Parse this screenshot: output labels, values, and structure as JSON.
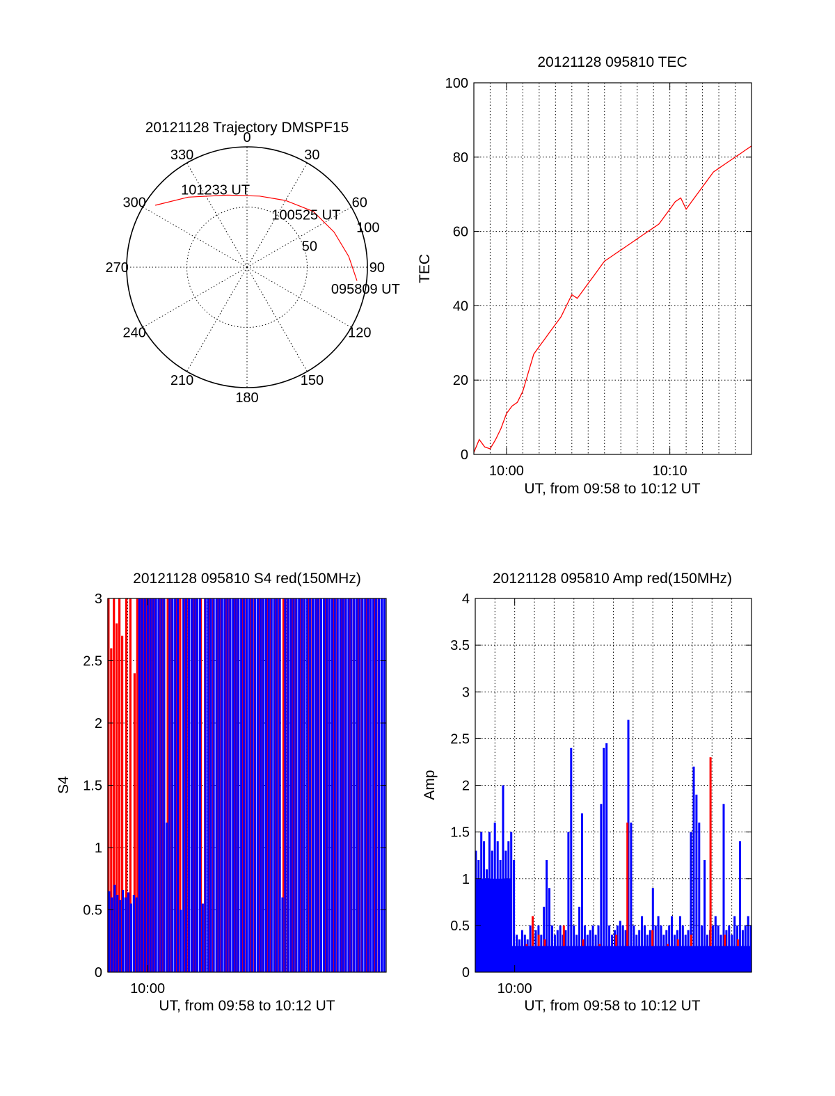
{
  "chart_data": [
    {
      "type": "polar-trajectory",
      "title": "20121128 Trajectory DMSPF15",
      "azimuth_ticks": [
        "0",
        "30",
        "60",
        "90",
        "120",
        "150",
        "180",
        "210",
        "240",
        "270",
        "300",
        "330"
      ],
      "radial_ticks": [
        "50",
        "100"
      ],
      "series": [
        {
          "color": "#ff0000",
          "points_az_zen": [
            [
              304,
              92
            ],
            [
              320,
              76
            ],
            [
              345,
              62
            ],
            [
              10,
              60
            ],
            [
              30,
              64
            ],
            [
              50,
              72
            ],
            [
              68,
              78
            ],
            [
              84,
              85
            ],
            [
              97,
              92
            ]
          ]
        }
      ],
      "annotations": [
        {
          "text": "101233 UT",
          "az": 338,
          "zen": 70
        },
        {
          "text": "100525 UT",
          "az": 48,
          "zen": 66
        },
        {
          "text": "095809 UT",
          "az": 100,
          "zen": 100
        }
      ]
    },
    {
      "type": "line",
      "title": "20121128 095810 TEC",
      "xlabel": "UT, from 09:58 to 10:12 UT",
      "ylabel": "TEC",
      "x_tick_labels": [
        "10:00",
        "10:10"
      ],
      "yticks": [
        "0",
        "20",
        "40",
        "60",
        "80",
        "100"
      ],
      "xlim": [
        9.9667,
        10.25
      ],
      "ylim": [
        0,
        100
      ],
      "series": [
        {
          "color": "#ff0000",
          "x": [
            9.9667,
            9.9722,
            9.9778,
            9.9833,
            9.9889,
            9.9944,
            10.0,
            10.0056,
            10.0111,
            10.0167,
            10.0222,
            10.0278,
            10.0333,
            10.0389,
            10.0444,
            10.05,
            10.0556,
            10.0611,
            10.0667,
            10.0722,
            10.0778,
            10.0833,
            10.0889,
            10.0944,
            10.1,
            10.1056,
            10.1111,
            10.1167,
            10.1222,
            10.1278,
            10.1333,
            10.1389,
            10.1444,
            10.15,
            10.1556,
            10.1611,
            10.1667,
            10.1722,
            10.1778,
            10.1833,
            10.1889,
            10.1944,
            10.2,
            10.2056,
            10.2111,
            10.2167,
            10.2222,
            10.2278,
            10.2333,
            10.2389,
            10.2444,
            10.25
          ],
          "y": [
            0.5,
            4,
            2,
            1.5,
            4,
            7,
            11,
            13,
            14,
            17,
            22,
            27,
            29,
            31,
            33,
            35,
            37,
            40,
            43,
            42,
            44,
            46,
            48,
            50,
            52,
            53,
            54,
            55,
            56,
            57,
            58,
            59,
            60,
            61,
            62,
            64,
            66,
            68,
            69,
            66,
            68,
            70,
            72,
            74,
            76,
            77,
            78,
            79,
            80,
            81,
            82,
            83
          ]
        }
      ]
    },
    {
      "type": "bar",
      "title": "20121128 095810 S4 red(150MHz)",
      "xlabel": "UT, from 09:58 to 10:12 UT",
      "ylabel": "S4",
      "x_tick_labels": [
        "10:00"
      ],
      "yticks": [
        "0",
        "0.5",
        "1",
        "1.5",
        "2",
        "2.5",
        "3"
      ],
      "xlim": [
        9.9667,
        10.2
      ],
      "ylim": [
        0,
        3
      ],
      "series": [
        {
          "color": "#ff0000",
          "x": [
            9.9672,
            9.9695,
            9.9718,
            9.9741,
            9.9764,
            9.9787,
            9.9822,
            9.9856,
            9.9891,
            9.9914,
            9.9937,
            9.9961,
            9.9984,
            10.0007,
            10.003,
            10.0065,
            10.0099,
            10.0134,
            10.0169,
            10.0203,
            10.0238,
            10.0273,
            10.0307,
            10.0342,
            10.0377,
            10.0411,
            10.0446,
            10.0481,
            10.0515,
            10.055,
            10.0585,
            10.0619,
            10.0654,
            10.0689,
            10.0723,
            10.0758,
            10.0793,
            10.0827,
            10.0862,
            10.0897,
            10.0931,
            10.0966,
            10.1001,
            10.1035,
            10.107,
            10.1105,
            10.1139,
            10.1174,
            10.1209,
            10.1243,
            10.1278,
            10.1313,
            10.1347,
            10.1382,
            10.1417,
            10.1451,
            10.1486,
            10.1521,
            10.1555,
            10.159,
            10.1625,
            10.1659,
            10.1694,
            10.1729,
            10.1763,
            10.1798,
            10.1833,
            10.1867,
            10.1902,
            10.1937
          ],
          "y": [
            3,
            2.6,
            3,
            2.8,
            3,
            2.7,
            3,
            3,
            2.4,
            3,
            3,
            3,
            3,
            3,
            3,
            3,
            3,
            3,
            3,
            3,
            3,
            3,
            3,
            3,
            3,
            3,
            3,
            3,
            3,
            3,
            3,
            3,
            3,
            3,
            3,
            3,
            3,
            3,
            3,
            3,
            3,
            3,
            3,
            3,
            3,
            3,
            3,
            3,
            3,
            3,
            3,
            3,
            3,
            3,
            3,
            3,
            3,
            3,
            3,
            3,
            3,
            3,
            3,
            3,
            3,
            3,
            3,
            3,
            3,
            3
          ]
        },
        {
          "color": "#0000ff",
          "x": [
            9.9678,
            9.9701,
            9.9724,
            9.9747,
            9.977,
            9.9793,
            9.9816,
            9.9839,
            9.9862,
            9.9885,
            9.9908,
            9.9931,
            9.9954,
            9.9978,
            10.0001,
            10.0024,
            10.0047,
            10.007,
            10.0093,
            10.0116,
            10.0139,
            10.0162,
            10.0185,
            10.0208,
            10.0231,
            10.0254,
            10.0278,
            10.0301,
            10.0324,
            10.0347,
            10.037,
            10.0393,
            10.0416,
            10.0439,
            10.0462,
            10.0485,
            10.0508,
            10.0531,
            10.0554,
            10.0578,
            10.0601,
            10.0624,
            10.0647,
            10.067,
            10.0693,
            10.0716,
            10.0739,
            10.0762,
            10.0785,
            10.0808,
            10.0831,
            10.0854,
            10.0878,
            10.0901,
            10.0924,
            10.0947,
            10.097,
            10.0993,
            10.1016,
            10.1039,
            10.1062,
            10.1085,
            10.1108,
            10.1131,
            10.1154,
            10.1178,
            10.1201,
            10.1224,
            10.1247,
            10.127,
            10.1293,
            10.1316,
            10.1339,
            10.1362,
            10.1385,
            10.1408,
            10.1431,
            10.1454,
            10.1478,
            10.1501,
            10.1524,
            10.1547,
            10.157,
            10.1593,
            10.1616,
            10.1639,
            10.1662,
            10.1685,
            10.1708,
            10.1731,
            10.1754,
            10.1778,
            10.1801,
            10.1824,
            10.1847,
            10.187,
            10.1893,
            10.1916,
            10.1939,
            10.1962,
            10.1985
          ],
          "y": [
            0.65,
            0.6,
            0.7,
            0.62,
            0.58,
            0.66,
            0.6,
            0.64,
            0.55,
            0.62,
            0.6,
            3,
            3,
            3,
            3,
            3,
            3,
            3,
            3,
            3,
            3,
            1.2,
            3,
            3,
            3,
            3,
            0.5,
            3,
            3,
            3,
            3,
            3,
            3,
            3,
            0.55,
            3,
            3,
            3,
            3,
            3,
            3,
            3,
            3,
            3,
            3,
            3,
            3,
            3,
            3,
            3,
            3,
            3,
            3,
            3,
            3,
            3,
            3,
            3,
            3,
            3,
            3,
            3,
            3,
            0.6,
            3,
            3,
            3,
            3,
            3,
            3,
            3,
            3,
            3,
            3,
            3,
            3,
            3,
            3,
            3,
            3,
            3,
            3,
            3,
            3,
            3,
            3,
            3,
            3,
            3,
            3,
            3,
            3,
            3,
            3,
            3,
            3,
            3,
            3,
            3,
            3,
            3
          ]
        }
      ]
    },
    {
      "type": "bar",
      "title": "20121128 095810 Amp red(150MHz)",
      "xlabel": "UT, from 09:58 to 10:12 UT",
      "ylabel": "Amp",
      "x_tick_labels": [
        "10:00"
      ],
      "yticks": [
        "0",
        "0.5",
        "1",
        "1.5",
        "2",
        "2.5",
        "3",
        "3.5",
        "4"
      ],
      "xlim": [
        9.9667,
        10.2
      ],
      "ylim": [
        0,
        4
      ],
      "series": [
        {
          "color": "#0000ff",
          "x": [
            9.9672,
            9.9695,
            9.9718,
            9.9741,
            9.9764,
            9.9787,
            9.981,
            9.9833,
            9.9856,
            9.9879,
            9.9902,
            9.9925,
            9.9948,
            9.9971,
            9.9994,
            10.0017,
            10.004,
            10.0063,
            10.0086,
            10.0109,
            10.0132,
            10.0155,
            10.0178,
            10.0201,
            10.0224,
            10.0247,
            10.027,
            10.0293,
            10.0316,
            10.0339,
            10.0362,
            10.0385,
            10.0408,
            10.0431,
            10.0454,
            10.0477,
            10.05,
            10.0523,
            10.0546,
            10.0569,
            10.0592,
            10.0615,
            10.0638,
            10.0661,
            10.0684,
            10.0707,
            10.073,
            10.0753,
            10.0776,
            10.0799,
            10.0822,
            10.0845,
            10.0868,
            10.0891,
            10.0914,
            10.0937,
            10.096,
            10.0983,
            10.1006,
            10.1029,
            10.1052,
            10.1075,
            10.1098,
            10.1121,
            10.1144,
            10.1167,
            10.119,
            10.1213,
            10.1236,
            10.1259,
            10.1282,
            10.1305,
            10.1328,
            10.1351,
            10.1374,
            10.1397,
            10.142,
            10.1443,
            10.1466,
            10.1489,
            10.1512,
            10.1535,
            10.1558,
            10.1581,
            10.1604,
            10.1627,
            10.165,
            10.1673,
            10.1696,
            10.1719,
            10.1742,
            10.1765,
            10.1788,
            10.1811,
            10.1834,
            10.1857,
            10.188,
            10.1903,
            10.1926,
            10.1949,
            10.1972,
            10.1995
          ],
          "y": [
            1.3,
            1.2,
            1.5,
            1.4,
            1.1,
            1.5,
            1.3,
            1.6,
            1.4,
            1.2,
            2.0,
            1.3,
            1.4,
            1.5,
            1.2,
            0.4,
            0.35,
            0.45,
            0.4,
            0.35,
            0.5,
            0.4,
            0.45,
            0.5,
            0.4,
            0.7,
            1.2,
            0.9,
            0.5,
            0.4,
            0.45,
            0.5,
            0.4,
            0.45,
            1.5,
            2.4,
            0.5,
            0.4,
            0.7,
            1.7,
            0.5,
            0.4,
            0.45,
            0.5,
            0.4,
            0.5,
            1.8,
            2.4,
            2.45,
            0.5,
            0.4,
            0.45,
            0.5,
            0.55,
            0.5,
            0.45,
            2.7,
            1.6,
            0.5,
            0.4,
            0.45,
            0.6,
            0.5,
            0.4,
            0.45,
            0.9,
            0.5,
            0.6,
            0.5,
            0.4,
            0.45,
            0.5,
            0.6,
            0.4,
            0.45,
            0.6,
            0.5,
            0.4,
            0.45,
            1.5,
            2.2,
            1.9,
            1.6,
            0.5,
            1.2,
            0.4,
            0.45,
            0.5,
            0.6,
            0.5,
            0.4,
            1.8,
            0.45,
            0.5,
            0.4,
            0.6,
            0.5,
            1.4,
            0.45,
            0.5,
            0.6,
            0.5
          ]
        },
        {
          "color": "#ff0000",
          "x": [
            10.0101,
            10.0152,
            10.0203,
            10.0254,
            10.0415,
            10.0578,
            10.0718,
            10.0858,
            10.0952,
            10.1163,
            10.1292,
            10.1379,
            10.1491,
            10.1654,
            10.1775,
            10.1885
          ],
          "y": [
            0.3,
            0.6,
            0.4,
            0.35,
            0.5,
            0.35,
            0.3,
            0.4,
            1.6,
            0.45,
            0.3,
            0.35,
            0.4,
            2.3,
            0.4,
            0.35
          ]
        }
      ]
    }
  ]
}
